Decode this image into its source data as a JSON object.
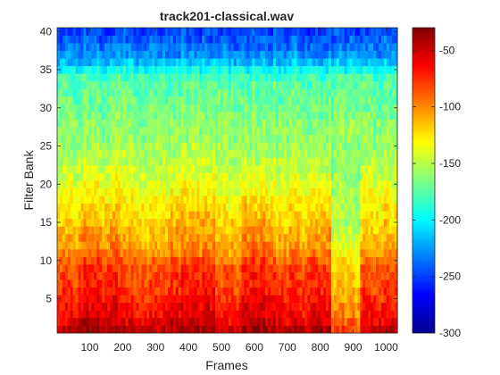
{
  "chart_data": {
    "type": "heatmap",
    "title": "track201-classical.wav",
    "xlabel": "Frames",
    "ylabel": "Filter Bank",
    "xlim": [
      1,
      1034
    ],
    "ylim": [
      0.5,
      40.5
    ],
    "x_ticks": [
      100,
      200,
      300,
      400,
      500,
      600,
      700,
      800,
      900,
      1000
    ],
    "y_ticks": [
      5,
      10,
      15,
      20,
      25,
      30,
      35,
      40
    ],
    "colormap": "jet",
    "colorbar": {
      "range": [
        -300,
        -30
      ],
      "ticks": [
        -50,
        -100,
        -150,
        -200,
        -250,
        -300
      ],
      "location": "right"
    },
    "n_filter_banks": 40,
    "n_frames": 1034,
    "bank_profile_values": [
      -55,
      -65,
      -72,
      -75,
      -80,
      -85,
      -88,
      -90,
      -92,
      -98,
      -110,
      -115,
      -118,
      -122,
      -126,
      -130,
      -133,
      -136,
      -140,
      -143,
      -147,
      -150,
      -153,
      -155,
      -157,
      -159,
      -160,
      -162,
      -165,
      -168,
      -170,
      -172,
      -175,
      -180,
      -195,
      -215,
      -228,
      -235,
      -242,
      -248
    ],
    "frame_segments": [
      {
        "from": 1,
        "to": 60,
        "offset": 8
      },
      {
        "from": 60,
        "to": 180,
        "offset": 18
      },
      {
        "from": 180,
        "to": 330,
        "offset": 6
      },
      {
        "from": 330,
        "to": 480,
        "offset": 16
      },
      {
        "from": 480,
        "to": 560,
        "offset": 4
      },
      {
        "from": 560,
        "to": 650,
        "offset": 20
      },
      {
        "from": 650,
        "to": 760,
        "offset": 10
      },
      {
        "from": 760,
        "to": 830,
        "offset": 16
      },
      {
        "from": 830,
        "to": 920,
        "offset": -28
      },
      {
        "from": 920,
        "to": 1034,
        "offset": 6
      }
    ],
    "grid": false
  }
}
